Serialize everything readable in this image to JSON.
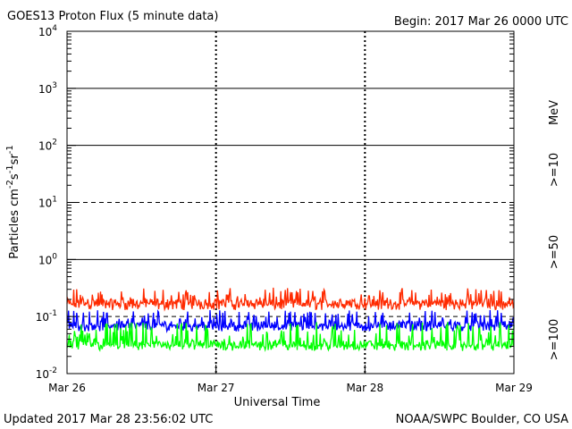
{
  "chart_data": {
    "type": "line",
    "title": "GOES13 Proton Flux (5 minute data)",
    "begin_label": "Begin: 2017 Mar 26 0000 UTC",
    "xlabel": "Universal Time",
    "ylabel_parts": [
      "Particles cm",
      "-2",
      "s",
      "-1",
      "sr",
      "-1"
    ],
    "units_label": "MeV",
    "x_ticks": [
      "Mar 26",
      "Mar 27",
      "Mar 28",
      "Mar 29"
    ],
    "x_range_days": [
      0,
      3
    ],
    "y_scale": "log",
    "ylim": [
      0.01,
      10000
    ],
    "y_ticks": [
      {
        "base": "10",
        "exp": "4"
      },
      {
        "base": "10",
        "exp": "3"
      },
      {
        "base": "10",
        "exp": "2"
      },
      {
        "base": "10",
        "exp": "1"
      },
      {
        "base": "10",
        "exp": "0"
      },
      {
        "base": "10",
        "exp": "-1"
      },
      {
        "base": "10",
        "exp": "-2"
      }
    ],
    "series": [
      {
        "name": ">=10",
        "color": "#ff2a00",
        "baseline": 0.17,
        "noise_low": 0.13,
        "noise_high": 0.32
      },
      {
        "name": ">=50",
        "color": "#0000ff",
        "baseline": 0.07,
        "noise_low": 0.055,
        "noise_high": 0.13
      },
      {
        "name": ">=100",
        "color": "#00ff00",
        "baseline": 0.032,
        "noise_low": 0.025,
        "noise_high": 0.08
      }
    ]
  },
  "footer": {
    "updated": "Updated 2017 Mar 28 23:56:02 UTC",
    "credit": "NOAA/SWPC Boulder, CO USA"
  }
}
